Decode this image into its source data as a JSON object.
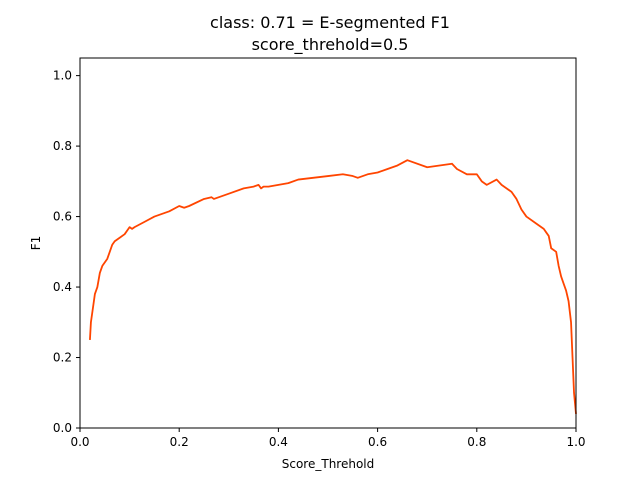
{
  "chart_data": {
    "type": "line",
    "title": "class: 0.71 = E-segmented F1",
    "subtitle": "score_threhold=0.5",
    "xlabel": "Score_Threhold",
    "ylabel": "F1",
    "xlim": [
      0.0,
      1.0
    ],
    "ylim": [
      0.0,
      1.05
    ],
    "grid": false,
    "colors": {
      "line": "#ff4500",
      "axes": "#000000",
      "background": "#ffffff"
    },
    "x_ticks": [
      "0.0",
      "0.2",
      "0.4",
      "0.6",
      "0.8",
      "1.0"
    ],
    "y_ticks": [
      "0.0",
      "0.2",
      "0.4",
      "0.6",
      "0.8",
      "1.0"
    ],
    "x": [
      0.02,
      0.022,
      0.025,
      0.03,
      0.035,
      0.04,
      0.045,
      0.05,
      0.055,
      0.06,
      0.065,
      0.07,
      0.08,
      0.09,
      0.1,
      0.105,
      0.11,
      0.13,
      0.15,
      0.16,
      0.17,
      0.18,
      0.2,
      0.21,
      0.22,
      0.25,
      0.265,
      0.27,
      0.28,
      0.29,
      0.3,
      0.33,
      0.35,
      0.36,
      0.365,
      0.37,
      0.38,
      0.4,
      0.42,
      0.44,
      0.47,
      0.5,
      0.53,
      0.55,
      0.56,
      0.58,
      0.6,
      0.62,
      0.64,
      0.66,
      0.7,
      0.75,
      0.76,
      0.78,
      0.8,
      0.81,
      0.82,
      0.84,
      0.85,
      0.87,
      0.88,
      0.89,
      0.9,
      0.92,
      0.935,
      0.94,
      0.945,
      0.95,
      0.96,
      0.965,
      0.97,
      0.975,
      0.98,
      0.985,
      0.99,
      0.993,
      0.996,
      0.998,
      1.0
    ],
    "y": [
      0.25,
      0.3,
      0.33,
      0.38,
      0.4,
      0.44,
      0.46,
      0.47,
      0.48,
      0.5,
      0.52,
      0.53,
      0.54,
      0.55,
      0.57,
      0.565,
      0.57,
      0.585,
      0.6,
      0.605,
      0.61,
      0.615,
      0.63,
      0.625,
      0.63,
      0.65,
      0.655,
      0.65,
      0.655,
      0.66,
      0.665,
      0.68,
      0.685,
      0.69,
      0.68,
      0.685,
      0.685,
      0.69,
      0.695,
      0.705,
      0.71,
      0.715,
      0.72,
      0.715,
      0.71,
      0.72,
      0.725,
      0.735,
      0.745,
      0.76,
      0.74,
      0.75,
      0.735,
      0.72,
      0.72,
      0.7,
      0.69,
      0.705,
      0.69,
      0.67,
      0.65,
      0.62,
      0.6,
      0.58,
      0.565,
      0.555,
      0.545,
      0.51,
      0.5,
      0.46,
      0.43,
      0.41,
      0.39,
      0.36,
      0.3,
      0.2,
      0.1,
      0.07,
      0.04
    ]
  }
}
